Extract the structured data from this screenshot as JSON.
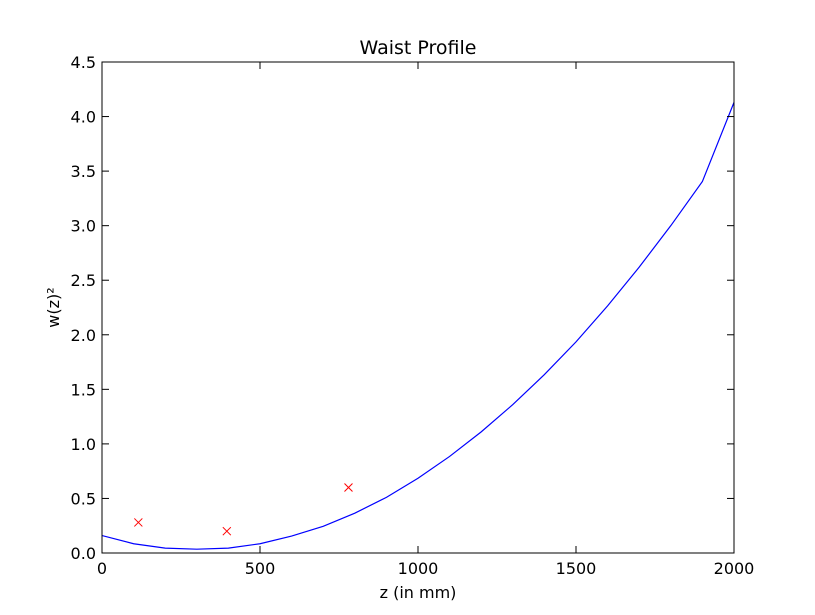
{
  "chart_data": {
    "type": "line",
    "title": "Waist Profile",
    "xlabel": "z (in mm)",
    "ylabel": "w(z)²",
    "xlim": [
      0,
      2000
    ],
    "ylim": [
      0,
      4.5
    ],
    "xticks": [
      "0",
      "500",
      "1000",
      "1500",
      "2000"
    ],
    "yticks": [
      "0.0",
      "0.5",
      "1.0",
      "1.5",
      "2.0",
      "2.5",
      "3.0",
      "3.5",
      "4.0",
      "4.5"
    ],
    "grid": false,
    "series": [
      {
        "kind": "line",
        "color": "#0000ff",
        "x": [
          0,
          100,
          200,
          300,
          400,
          500,
          600,
          700,
          800,
          900,
          1000,
          1100,
          1200,
          1300,
          1400,
          1500,
          1600,
          1700,
          1800,
          1900,
          2000
        ],
        "y": [
          0.16,
          0.085,
          0.045,
          0.035,
          0.045,
          0.085,
          0.155,
          0.245,
          0.365,
          0.51,
          0.685,
          0.885,
          1.11,
          1.36,
          1.635,
          1.935,
          2.265,
          2.62,
          3.0,
          3.405,
          4.13
        ]
      },
      {
        "kind": "marker",
        "marker": "x",
        "color": "#ff0000",
        "x": [
          115,
          395,
          780
        ],
        "y": [
          0.28,
          0.2,
          0.6
        ]
      }
    ]
  }
}
